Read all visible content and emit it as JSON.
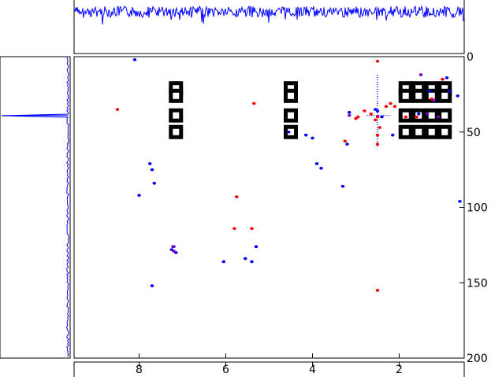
{
  "chart_data": {
    "type": "scatter",
    "title": "",
    "xlabel": "",
    "ylabel": "",
    "xlim": [
      9.5,
      0.5
    ],
    "ylim": [
      0,
      200
    ],
    "x_ticks": [
      8,
      6,
      4,
      2
    ],
    "y_ticks": [
      0,
      50,
      100,
      150,
      200
    ],
    "grid": false,
    "colors": {
      "series_a": "#0000ff",
      "series_b": "#ff0000",
      "overlap": "#7b00c0",
      "frame": "#000000"
    },
    "series": [
      {
        "values": [
          [
            8.1,
            2
          ],
          [
            4.55,
            50
          ],
          [
            4.15,
            52
          ],
          [
            4.0,
            54
          ],
          [
            3.15,
            37
          ],
          [
            3.2,
            58
          ],
          [
            3.3,
            86
          ],
          [
            3.9,
            71
          ],
          [
            3.8,
            74
          ],
          [
            2.55,
            35
          ],
          [
            2.5,
            36
          ],
          [
            2.4,
            40
          ],
          [
            2.15,
            52
          ],
          [
            1.55,
            38
          ],
          [
            1.3,
            23
          ],
          [
            1.0,
            15
          ],
          [
            0.9,
            14
          ],
          [
            0.85,
            23
          ],
          [
            0.65,
            26
          ],
          [
            7.2,
            126
          ],
          [
            7.25,
            128
          ],
          [
            7.15,
            130
          ],
          [
            5.3,
            126
          ],
          [
            5.4,
            136
          ],
          [
            6.05,
            136
          ],
          [
            5.55,
            134
          ],
          [
            7.7,
            75
          ],
          [
            7.75,
            71
          ],
          [
            7.65,
            84
          ],
          [
            8.0,
            92
          ],
          [
            7.7,
            152
          ],
          [
            0.6,
            96
          ]
        ]
      },
      {
        "values": [
          [
            2.5,
            3
          ],
          [
            2.5,
            40
          ],
          [
            2.55,
            42
          ],
          [
            2.65,
            38
          ],
          [
            2.8,
            36
          ],
          [
            2.95,
            40
          ],
          [
            3.0,
            41
          ],
          [
            2.2,
            31
          ],
          [
            2.3,
            33
          ],
          [
            2.1,
            33
          ],
          [
            1.85,
            40
          ],
          [
            1.6,
            40
          ],
          [
            1.25,
            28
          ],
          [
            1.0,
            15
          ],
          [
            3.25,
            56
          ],
          [
            5.8,
            114
          ],
          [
            5.4,
            114
          ],
          [
            5.75,
            93
          ],
          [
            5.35,
            31
          ],
          [
            8.5,
            35
          ],
          [
            2.5,
            155
          ],
          [
            2.5,
            58
          ],
          [
            2.5,
            52
          ],
          [
            2.45,
            47
          ]
        ]
      },
      {
        "values": [
          [
            7.2,
            129
          ],
          [
            7.22,
            126
          ],
          [
            1.5,
            12
          ],
          [
            1.2,
            29
          ],
          [
            1.35,
            38
          ],
          [
            1.1,
            40
          ],
          [
            3.15,
            39
          ]
        ]
      }
    ],
    "markers": [
      {
        "x": 7.15,
        "y": 21
      },
      {
        "x": 7.15,
        "y": 26
      },
      {
        "x": 7.15,
        "y": 39
      },
      {
        "x": 7.15,
        "y": 50
      },
      {
        "x": 4.5,
        "y": 21
      },
      {
        "x": 4.5,
        "y": 26
      },
      {
        "x": 4.5,
        "y": 39
      },
      {
        "x": 4.5,
        "y": 50
      },
      {
        "x": 1.85,
        "y": 21
      },
      {
        "x": 1.85,
        "y": 26
      },
      {
        "x": 1.85,
        "y": 39
      },
      {
        "x": 1.85,
        "y": 50
      },
      {
        "x": 1.55,
        "y": 21
      },
      {
        "x": 1.55,
        "y": 26
      },
      {
        "x": 1.55,
        "y": 39
      },
      {
        "x": 1.55,
        "y": 50
      },
      {
        "x": 1.25,
        "y": 21
      },
      {
        "x": 1.25,
        "y": 26
      },
      {
        "x": 1.25,
        "y": 39
      },
      {
        "x": 1.25,
        "y": 50
      },
      {
        "x": 0.95,
        "y": 21
      },
      {
        "x": 0.95,
        "y": 26
      },
      {
        "x": 0.95,
        "y": 39
      },
      {
        "x": 0.95,
        "y": 50
      }
    ],
    "projection_top": {
      "x_range": [
        9.5,
        0.5
      ]
    },
    "projection_left": {
      "peak_y": 39
    }
  }
}
